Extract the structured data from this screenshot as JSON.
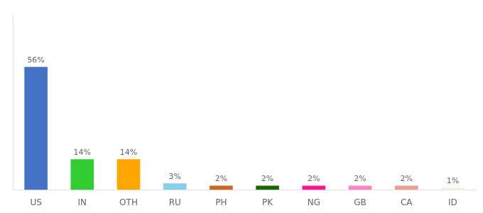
{
  "chart_data": {
    "type": "bar",
    "categories": [
      "US",
      "IN",
      "OTH",
      "RU",
      "PH",
      "PK",
      "NG",
      "GB",
      "CA",
      "ID"
    ],
    "values": [
      56,
      14,
      14,
      3,
      2,
      2,
      2,
      2,
      2,
      1
    ],
    "value_labels": [
      "56%",
      "14%",
      "14%",
      "3%",
      "2%",
      "2%",
      "2%",
      "2%",
      "2%",
      "1%"
    ],
    "colors": [
      "#4472C4",
      "#33CC33",
      "#FFA500",
      "#87CEEB",
      "#CC6622",
      "#1A6600",
      "#FF1493",
      "#FF85C2",
      "#E8A090",
      "#F5F0DC"
    ],
    "ylim": [
      0,
      80
    ],
    "grid": false,
    "data_labels": true,
    "tick_labels": "x"
  }
}
